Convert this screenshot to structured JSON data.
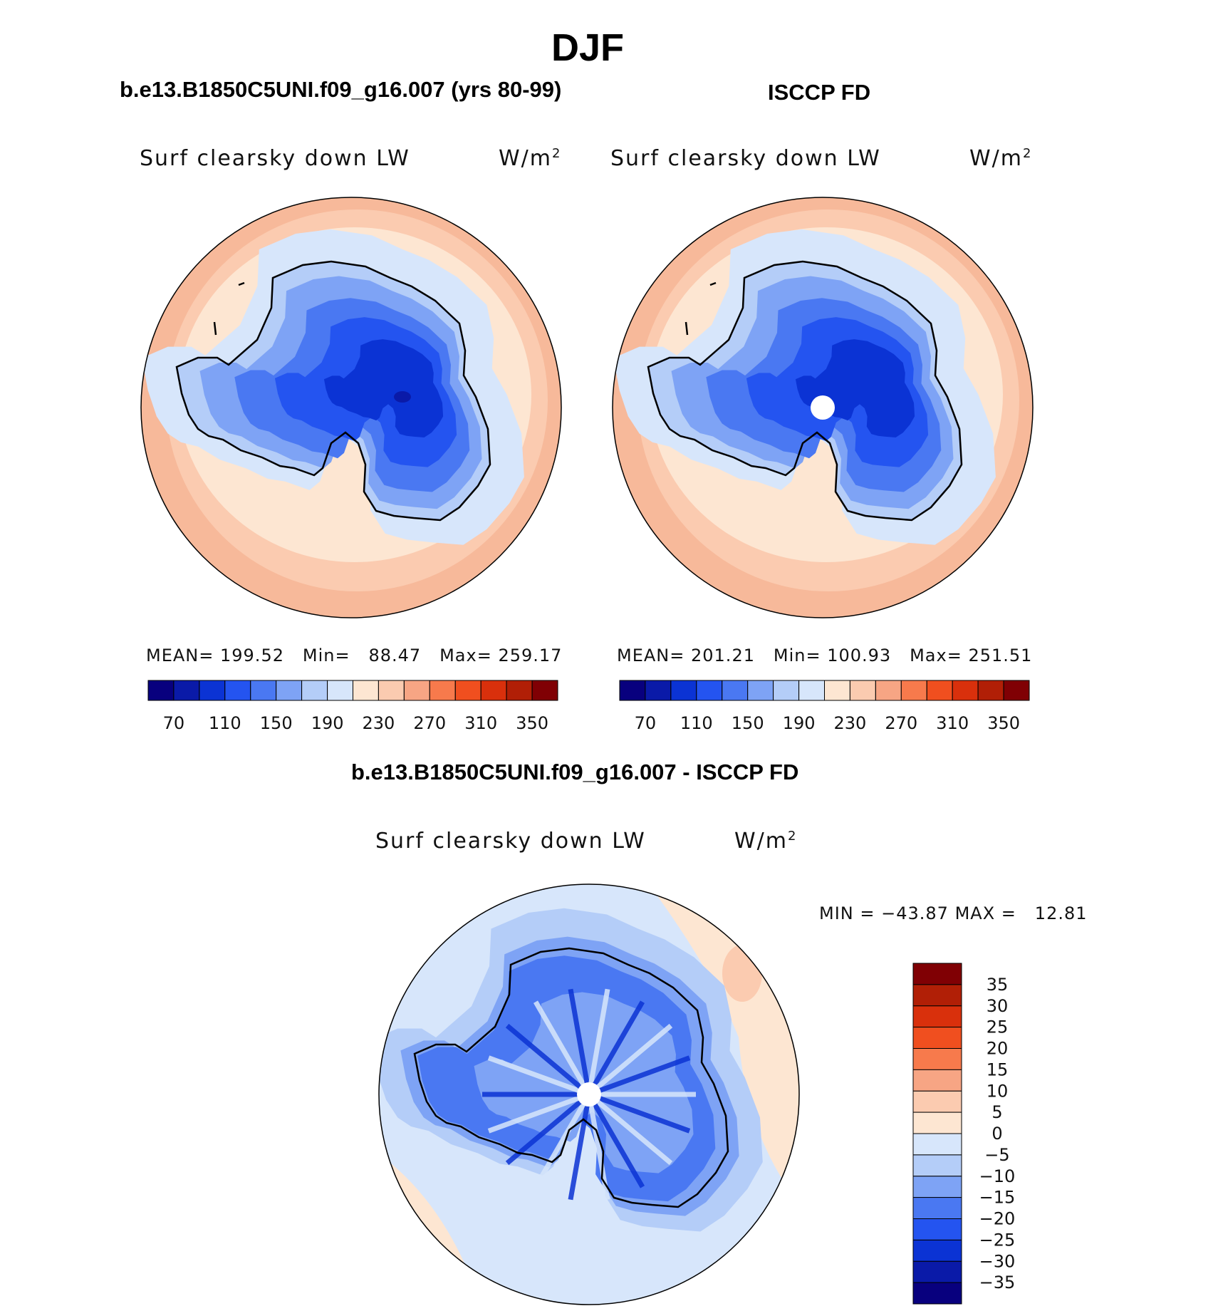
{
  "figure": {
    "title": "DJF"
  },
  "panels": {
    "model": {
      "title": "b.e13.B1850C5UNI.f09_g16.007 (yrs 80-99)",
      "variable": "Surf clearsky down LW",
      "units": "W/m",
      "units_exp": "2",
      "mean_label": "MEAN=",
      "mean": "199.52",
      "min_label": "Min=",
      "min": "88.47",
      "max_label": "Max=",
      "max": "259.17"
    },
    "obs": {
      "title": "ISCCP FD",
      "variable": "Surf clearsky down LW",
      "units": "W/m",
      "units_exp": "2",
      "mean_label": "MEAN=",
      "mean": "201.21",
      "min_label": "Min=",
      "min": "100.93",
      "max_label": "Max=",
      "max": "251.51"
    },
    "diff": {
      "title": "b.e13.B1850C5UNI.f09_g16.007 - ISCCP FD",
      "variable": "Surf clearsky down LW",
      "units": "W/m",
      "units_exp": "2",
      "min_label": "MIN =",
      "min": "−43.87",
      "max_label": "MAX =",
      "max": "12.81"
    }
  },
  "colorbars": {
    "absolute": {
      "labels": [
        "70",
        "110",
        "150",
        "190",
        "230",
        "270",
        "310",
        "350"
      ],
      "colors": [
        "#08007e",
        "#0a1aa8",
        "#0b33d4",
        "#2454f0",
        "#4a78f2",
        "#7ea3f5",
        "#b4cdf8",
        "#d7e6fb",
        "#fde6d2",
        "#fbcbb0",
        "#f7a584",
        "#f77a4c",
        "#f04f1f",
        "#d9300c",
        "#b11f06",
        "#800004"
      ]
    },
    "difference": {
      "labels": [
        "35",
        "30",
        "25",
        "20",
        "15",
        "10",
        "5",
        "0",
        "−5",
        "−10",
        "−15",
        "−20",
        "−25",
        "−30",
        "−35"
      ],
      "colors": [
        "#800004",
        "#b11f06",
        "#d9300c",
        "#f04f1f",
        "#f77a4c",
        "#f7a584",
        "#fbcbb0",
        "#fde6d2",
        "#d7e6fb",
        "#b4cdf8",
        "#7ea3f5",
        "#4a78f2",
        "#2454f0",
        "#0b33d4",
        "#0a1aa8",
        "#08007e"
      ]
    }
  },
  "map_colors": {
    "ocean_outer": "#f7b99a",
    "ocean_mid": "#fbcbb0",
    "ocean_inner": "#fde6d2",
    "sea_ice": "#d7e6fb",
    "coast_low": "#b4cdf8",
    "coast": "#7ea3f5",
    "slope": "#4a78f2",
    "plateau": "#2454f0",
    "interior": "#0b33d4",
    "core": "#0a1aa8",
    "coastline": "#000000"
  }
}
